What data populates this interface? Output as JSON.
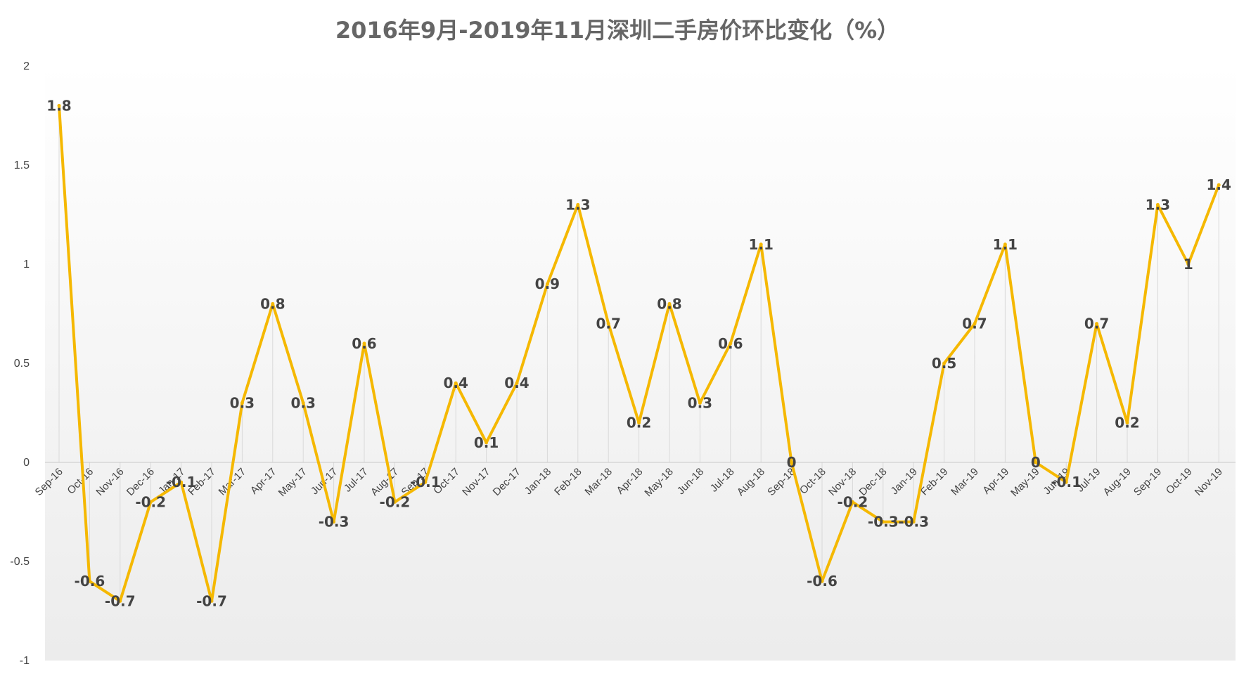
{
  "chart_data": {
    "type": "line",
    "title": "2016年9月-2019年11月深圳二手房价环比变化（%）",
    "xlabel": "",
    "ylabel": "",
    "ylim": [
      -1,
      2
    ],
    "yticks": [
      "2",
      "1.5",
      "1",
      "0.5",
      "0",
      "-0.5",
      "-1"
    ],
    "ytick_values": [
      2,
      1.5,
      1,
      0.5,
      0,
      -0.5,
      -1
    ],
    "grid": false,
    "legend": "none",
    "line_color": "#F5B800",
    "drop_line_color": "#D9D9D9",
    "categories": [
      "Sep-16",
      "Oct-16",
      "Nov-16",
      "Dec-16",
      "Jan-17",
      "Feb-17",
      "Mar-17",
      "Apr-17",
      "May-17",
      "Jun-17",
      "Jul-17",
      "Aug-17",
      "Sep-17",
      "Oct-17",
      "Nov-17",
      "Dec-17",
      "Jan-18",
      "Feb-18",
      "Mar-18",
      "Apr-18",
      "May-18",
      "Jun-18",
      "Jul-18",
      "Aug-18",
      "Sep-18",
      "Oct-18",
      "Nov-18",
      "Dec-18",
      "Jan-19",
      "Feb-19",
      "Mar-19",
      "Apr-19",
      "May-19",
      "Jun-19",
      "Jul-19",
      "Aug-19",
      "Sep-19",
      "Oct-19",
      "Nov-19"
    ],
    "series": [
      {
        "values": [
          1.8,
          -0.6,
          -0.7,
          -0.2,
          -0.1,
          -0.7,
          0.3,
          0.8,
          0.3,
          -0.3,
          0.6,
          -0.2,
          -0.1,
          0.4,
          0.1,
          0.4,
          0.9,
          1.3,
          0.7,
          0.2,
          0.8,
          0.3,
          0.6,
          1.1,
          0,
          -0.6,
          -0.2,
          -0.3,
          -0.3,
          0.5,
          0.7,
          1.1,
          0,
          -0.1,
          0.7,
          0.2,
          1.3,
          1,
          1.4
        ],
        "labels": [
          "1.8",
          "-0.6",
          "-0.7",
          "-0.2",
          "-0.1",
          "-0.7",
          "0.3",
          "0.8",
          "0.3",
          "-0.3",
          "0.6",
          "-0.2",
          "-0.1",
          "0.4",
          "0.1",
          "0.4",
          "0.9",
          "1.3",
          "0.7",
          "0.2",
          "0.8",
          "0.3",
          "0.6",
          "1.1",
          "0",
          "-0.6",
          "-0.2",
          "-0.3",
          "-0.3",
          "0.5",
          "0.7",
          "1.1",
          "0",
          "-0.1",
          "0.7",
          "0.2",
          "1.3",
          "1",
          "1.4"
        ]
      }
    ]
  }
}
